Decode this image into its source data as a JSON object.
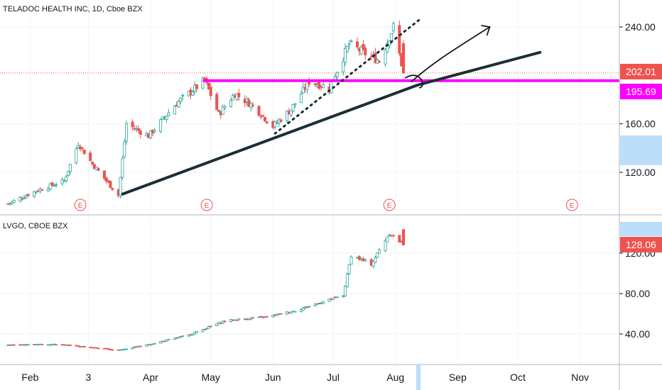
{
  "chart_data": [
    {
      "type": "candlestick",
      "title": "TELADOC HEALTH INC, 1D, Cboe BZX",
      "y_ticks": [
        "120.00",
        "160.00",
        "240.00"
      ],
      "ylim": [
        85,
        265
      ],
      "price_labels": [
        {
          "text": "202.01",
          "value": 202.01,
          "color": "#ef5350"
        },
        {
          "text": "195.69",
          "value": 195.69,
          "color": "#ff00ff"
        }
      ],
      "earnings_markers": [
        "E",
        "E",
        "E",
        "E"
      ],
      "earnings_dates": [
        "2020-02-26",
        "2020-04-29",
        "2020-07-29",
        "2020-10-28"
      ],
      "horizontal_level": 195.69,
      "last_close_level": 202.01,
      "ohlc_sample_close": [
        {
          "date": "2020-01-21",
          "close": 94
        },
        {
          "date": "2020-02-03",
          "close": 104
        },
        {
          "date": "2020-02-18",
          "close": 113
        },
        {
          "date": "2020-02-25",
          "close": 144
        },
        {
          "date": "2020-03-03",
          "close": 127
        },
        {
          "date": "2020-03-16",
          "close": 101
        },
        {
          "date": "2020-03-20",
          "close": 160
        },
        {
          "date": "2020-03-31",
          "close": 150
        },
        {
          "date": "2020-04-14",
          "close": 177
        },
        {
          "date": "2020-04-28",
          "close": 196
        },
        {
          "date": "2020-05-05",
          "close": 168
        },
        {
          "date": "2020-05-13",
          "close": 185
        },
        {
          "date": "2020-05-22",
          "close": 175
        },
        {
          "date": "2020-06-01",
          "close": 158
        },
        {
          "date": "2020-06-10",
          "close": 172
        },
        {
          "date": "2020-06-19",
          "close": 195
        },
        {
          "date": "2020-06-29",
          "close": 190
        },
        {
          "date": "2020-07-09",
          "close": 226
        },
        {
          "date": "2020-07-17",
          "close": 218
        },
        {
          "date": "2020-07-24",
          "close": 212
        },
        {
          "date": "2020-07-31",
          "close": 240
        },
        {
          "date": "2020-08-05",
          "close": 202.01
        }
      ]
    },
    {
      "type": "candlestick",
      "title": "LVGO, CBOE BZX",
      "y_ticks": [
        "40.00",
        "80.00",
        "120.00"
      ],
      "ylim": [
        12,
        158
      ],
      "price_labels": [
        {
          "text": "128.06",
          "value": 128.06,
          "color": "#ef5350"
        }
      ],
      "ohlc_sample_close": [
        {
          "date": "2020-01-21",
          "close": 29
        },
        {
          "date": "2020-02-14",
          "close": 30
        },
        {
          "date": "2020-03-16",
          "close": 24
        },
        {
          "date": "2020-04-01",
          "close": 30
        },
        {
          "date": "2020-04-20",
          "close": 39
        },
        {
          "date": "2020-05-08",
          "close": 53
        },
        {
          "date": "2020-05-29",
          "close": 57
        },
        {
          "date": "2020-06-12",
          "close": 63
        },
        {
          "date": "2020-06-26",
          "close": 72
        },
        {
          "date": "2020-07-06",
          "close": 78
        },
        {
          "date": "2020-07-10",
          "close": 118
        },
        {
          "date": "2020-07-20",
          "close": 109
        },
        {
          "date": "2020-07-29",
          "close": 140
        },
        {
          "date": "2020-08-05",
          "close": 128.06
        }
      ]
    }
  ],
  "x_axis": {
    "labels": [
      "Feb",
      "3",
      "Apr",
      "May",
      "Jun",
      "Jul",
      "Aug",
      "Sep",
      "Oct",
      "Nov"
    ],
    "label_dates": [
      "2020-02-01",
      "2020-03-01",
      "2020-04-01",
      "2020-05-01",
      "2020-06-01",
      "2020-07-01",
      "2020-08-01",
      "2020-09-01",
      "2020-10-01",
      "2020-11-01"
    ]
  },
  "drawings": {
    "trendline_color": "#1a2e35",
    "level_color": "#ff00ff",
    "projection_arrow": "up-right"
  },
  "colors": {
    "up": "#26a69a",
    "down": "#ef5350",
    "axis_highlight": "#bbdefb"
  }
}
